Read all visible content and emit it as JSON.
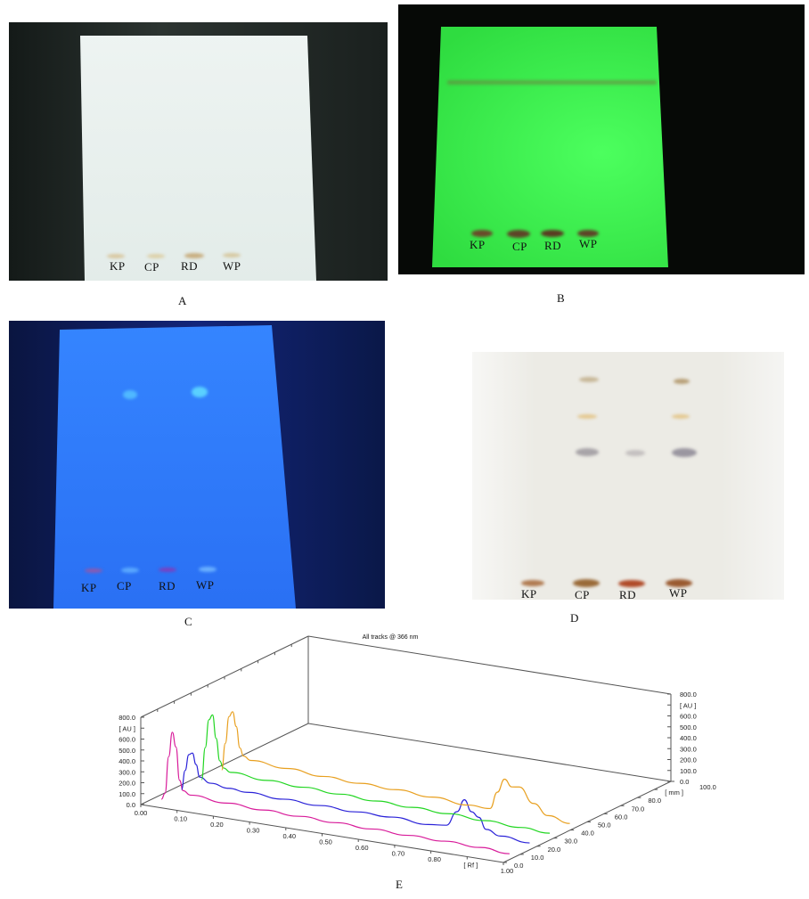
{
  "panels": [
    {
      "caption": "A",
      "lanes": [
        "KP",
        "CP",
        "RD",
        "WP"
      ],
      "plate_color": "#e8f0ee",
      "background": "#1e2422"
    },
    {
      "caption": "B",
      "lanes": [
        "KP",
        "CP",
        "RD",
        "WP"
      ],
      "plate_color": "#3bef4e",
      "background": "#050805"
    },
    {
      "caption": "C",
      "lanes": [
        "KP",
        "CP",
        "RD",
        "WP"
      ],
      "plate_color": "#2f7bff",
      "background": "#0c1a4a"
    },
    {
      "caption": "D",
      "lanes": [
        "KP",
        "CP",
        "RD",
        "WP"
      ],
      "plate_color": "#ecebe4",
      "background": "#f4f4f2"
    }
  ],
  "chart_caption": "E",
  "chart_data": {
    "type": "line",
    "title": "All tracks @ 366 nm",
    "xlabel": "[ Rf ]",
    "ylabel": "[ AU ]",
    "zlabel": "[ mm ]",
    "xlim": [
      0,
      1.0
    ],
    "ylim": [
      0,
      800
    ],
    "zlim": [
      0,
      100
    ],
    "x_ticks": [
      "0.00",
      "0.10",
      "0.20",
      "0.30",
      "0.40",
      "0.50",
      "0.60",
      "0.70",
      "0.80",
      "[ Rf ]",
      "1.00"
    ],
    "y_ticks": [
      "0.0",
      "100.0",
      "200.0",
      "300.0",
      "400.0",
      "500.0",
      "600.0",
      "[ AU ]",
      "800.0"
    ],
    "z_ticks": [
      "0.0",
      "10.0",
      "20.0",
      "30.0",
      "40.0",
      "50.0",
      "60.0",
      "70.0",
      "80.0",
      "[ mm ]",
      "100.0"
    ],
    "series": [
      {
        "color": "#d81b9a",
        "track_mm": 8,
        "points": [
          [
            0.02,
            0
          ],
          [
            0.03,
            60
          ],
          [
            0.04,
            400
          ],
          [
            0.05,
            630
          ],
          [
            0.06,
            500
          ],
          [
            0.07,
            200
          ],
          [
            0.08,
            110
          ],
          [
            0.1,
            80
          ],
          [
            0.2,
            60
          ],
          [
            0.3,
            50
          ],
          [
            0.4,
            45
          ],
          [
            0.5,
            40
          ],
          [
            0.6,
            35
          ],
          [
            0.7,
            30
          ],
          [
            0.8,
            30
          ],
          [
            0.9,
            25
          ],
          [
            0.98,
            10
          ]
        ]
      },
      {
        "color": "#2a22d8",
        "track_mm": 20,
        "points": [
          [
            0.02,
            0
          ],
          [
            0.03,
            180
          ],
          [
            0.04,
            330
          ],
          [
            0.05,
            350
          ],
          [
            0.06,
            250
          ],
          [
            0.07,
            140
          ],
          [
            0.1,
            100
          ],
          [
            0.15,
            80
          ],
          [
            0.2,
            70
          ],
          [
            0.3,
            60
          ],
          [
            0.4,
            55
          ],
          [
            0.5,
            50
          ],
          [
            0.6,
            55
          ],
          [
            0.7,
            40
          ],
          [
            0.75,
            60
          ],
          [
            0.78,
            200
          ],
          [
            0.8,
            320
          ],
          [
            0.82,
            220
          ],
          [
            0.84,
            180
          ],
          [
            0.86,
            80
          ],
          [
            0.9,
            40
          ],
          [
            0.98,
            20
          ]
        ]
      },
      {
        "color": "#22d622",
        "track_mm": 32,
        "points": [
          [
            0.02,
            0
          ],
          [
            0.03,
            300
          ],
          [
            0.04,
            560
          ],
          [
            0.05,
            610
          ],
          [
            0.06,
            400
          ],
          [
            0.07,
            200
          ],
          [
            0.08,
            140
          ],
          [
            0.1,
            110
          ],
          [
            0.2,
            90
          ],
          [
            0.3,
            80
          ],
          [
            0.4,
            70
          ],
          [
            0.5,
            60
          ],
          [
            0.6,
            55
          ],
          [
            0.7,
            50
          ],
          [
            0.8,
            40
          ],
          [
            0.9,
            30
          ],
          [
            0.98,
            20
          ]
        ]
      },
      {
        "color": "#e8a020",
        "track_mm": 44,
        "points": [
          [
            0.02,
            0
          ],
          [
            0.03,
            250
          ],
          [
            0.04,
            500
          ],
          [
            0.05,
            550
          ],
          [
            0.06,
            420
          ],
          [
            0.07,
            230
          ],
          [
            0.08,
            160
          ],
          [
            0.1,
            130
          ],
          [
            0.2,
            110
          ],
          [
            0.3,
            90
          ],
          [
            0.4,
            80
          ],
          [
            0.5,
            75
          ],
          [
            0.6,
            60
          ],
          [
            0.7,
            40
          ],
          [
            0.76,
            40
          ],
          [
            0.78,
            200
          ],
          [
            0.8,
            330
          ],
          [
            0.82,
            270
          ],
          [
            0.84,
            280
          ],
          [
            0.88,
            150
          ],
          [
            0.92,
            60
          ],
          [
            0.98,
            20
          ]
        ]
      }
    ]
  }
}
